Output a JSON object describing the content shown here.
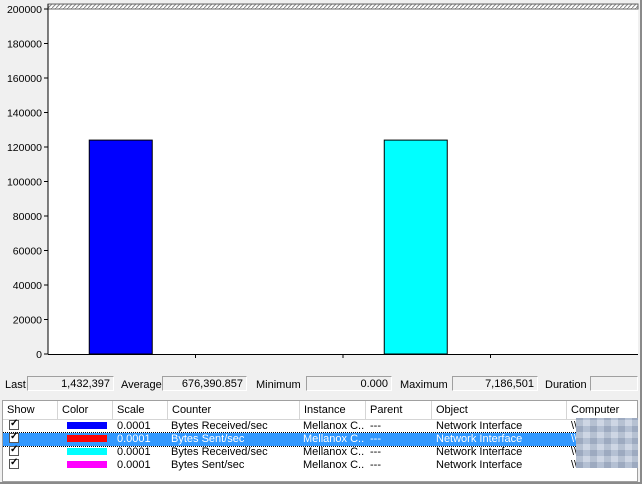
{
  "chart_data": {
    "type": "bar",
    "yticks": [
      "0",
      "20000",
      "40000",
      "60000",
      "80000",
      "100000",
      "120000",
      "140000",
      "160000",
      "180000",
      "200000"
    ],
    "ylim": [
      0,
      200000
    ],
    "bars": [
      {
        "counter": "Bytes Received/sec",
        "value": 124000,
        "color": "#0000ff"
      },
      {
        "counter": "Bytes Sent/sec",
        "value": 0,
        "color": "#ff0000"
      },
      {
        "counter": "Bytes Received/sec",
        "value": 124000,
        "color": "#00ffff"
      },
      {
        "counter": "Bytes Sent/sec",
        "value": 0,
        "color": "#ff00ff"
      }
    ],
    "grid": false
  },
  "stats": {
    "last_label": "Last",
    "last_value": "1,432,397",
    "average_label": "Average",
    "average_value": "676,390.857",
    "minimum_label": "Minimum",
    "minimum_value": "0.000",
    "maximum_label": "Maximum",
    "maximum_value": "7,186,501",
    "duration_label": "Duration",
    "duration_value": ""
  },
  "list": {
    "headers": {
      "show": "Show",
      "color": "Color",
      "scale": "Scale",
      "counter": "Counter",
      "instance": "Instance",
      "parent": "Parent",
      "object": "Object",
      "computer": "Computer"
    },
    "rows": [
      {
        "color": "#0000ff",
        "scale": "0.0001",
        "counter": "Bytes Received/sec",
        "instance": "Mellanox C...",
        "parent": "---",
        "object": "Network Interface",
        "computer": "\\\\",
        "selected": false
      },
      {
        "color": "#ff0000",
        "scale": "0.0001",
        "counter": "Bytes Sent/sec",
        "instance": "Mellanox C...",
        "parent": "---",
        "object": "Network Interface",
        "computer": "\\\\",
        "selected": true
      },
      {
        "color": "#00ffff",
        "scale": "0.0001",
        "counter": "Bytes Received/sec",
        "instance": "Mellanox C...",
        "parent": "---",
        "object": "Network Interface",
        "computer": "\\\\",
        "selected": false
      },
      {
        "color": "#ff00ff",
        "scale": "0.0001",
        "counter": "Bytes Sent/sec",
        "instance": "Mellanox C...",
        "parent": "---",
        "object": "Network Interface",
        "computer": "\\\\",
        "selected": false
      }
    ]
  }
}
